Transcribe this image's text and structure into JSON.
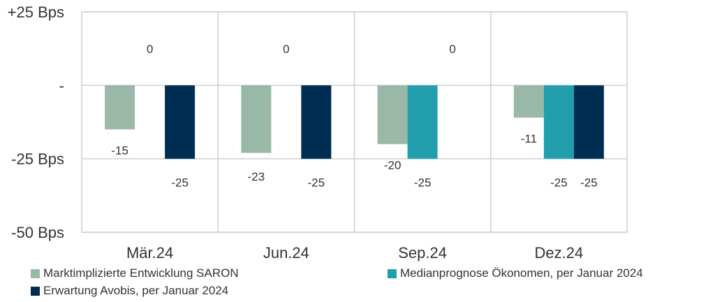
{
  "chart_data": {
    "type": "bar",
    "title": "",
    "xlabel": "",
    "ylabel": "",
    "ylim": [
      -50,
      25
    ],
    "y_ticks": [
      {
        "value": 25,
        "label": "+25 Bps"
      },
      {
        "value": 0,
        "label": "-"
      },
      {
        "value": -25,
        "label": "-25 Bps"
      },
      {
        "value": -50,
        "label": "-50 Bps"
      }
    ],
    "categories": [
      "Mär.24",
      "Jun.24",
      "Sep.24",
      "Dez.24"
    ],
    "series": [
      {
        "name": "Marktimplizierte Entwicklung SARON",
        "color": "#9ab8a8",
        "values": [
          -15,
          -23,
          -20,
          -11
        ],
        "labels": [
          "-15",
          "-23",
          "-20",
          "-11"
        ]
      },
      {
        "name": "Medianprognose Ökonomen, per Januar 2024",
        "color": "#239eac",
        "values": [
          0,
          0,
          -25,
          -25
        ],
        "labels": [
          "0",
          "0",
          "-25",
          "-25"
        ]
      },
      {
        "name": "Erwartung Avobis, per Januar 2024",
        "color": "#002e52",
        "values": [
          -25,
          -25,
          0,
          -25
        ],
        "labels": [
          "-25",
          "-25",
          "0",
          "-25"
        ]
      }
    ],
    "grid": true,
    "legend_position": "bottom"
  }
}
